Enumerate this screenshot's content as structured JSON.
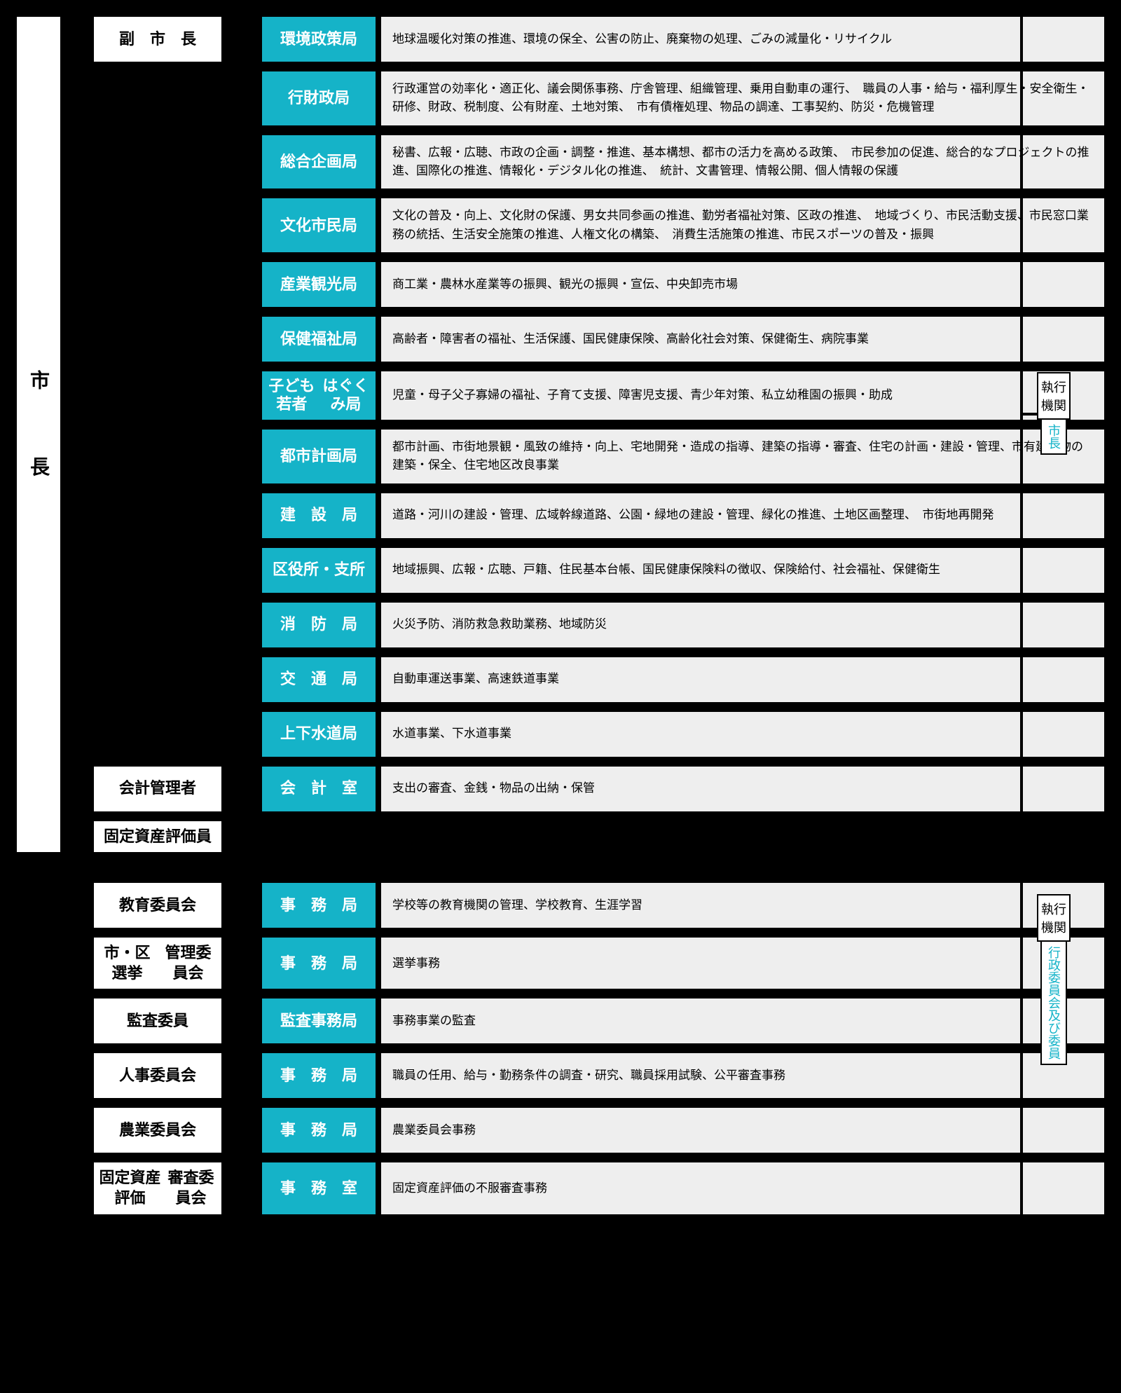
{
  "colors": {
    "bureau_bg": "#15b3c8",
    "desc_bg": "#eeeeee",
    "line": "#000000",
    "side_sub_color": "#15b3c8"
  },
  "root": "市　長",
  "mid": {
    "vice": "副　市　長",
    "acct": "会計管理者",
    "asset": "固定資産評価員",
    "edu": "教育委員会",
    "elect": "市・区選挙\n管理委員会",
    "audit": "監査委員",
    "person": "人事委員会",
    "agri": "農業委員会",
    "assetrev": "固定資産評価\n審査委員会"
  },
  "bureaus": [
    {
      "name": "環境政策局",
      "desc": "地球温暖化対策の推進、環境の保全、公害の防止、廃棄物の処理、ごみの減量化・リサイクル"
    },
    {
      "name": "行財政局",
      "desc": "行政運営の効率化・適正化、議会関係事務、庁舎管理、組織管理、乗用自動車の運行、　職員の人事・給与・福利厚生・安全衛生・研修、財政、税制度、公有財産、土地対策、　市有債権処理、物品の調達、工事契約、防災・危機管理"
    },
    {
      "name": "総合企画局",
      "desc": "秘書、広報・広聴、市政の企画・調整・推進、基本構想、都市の活力を高める政策、　市民参加の促進、総合的なプロジェクトの推進、国際化の推進、情報化・デジタル化の推進、　統計、文書管理、情報公開、個人情報の保護"
    },
    {
      "name": "文化市民局",
      "desc": "文化の普及・向上、文化財の保護、男女共同参画の推進、勤労者福祉対策、区政の推進、　地域づくり、市民活動支援、市民窓口業務の統括、生活安全施策の推進、人権文化の構築、　消費生活施策の推進、市民スポーツの普及・振興"
    },
    {
      "name": "産業観光局",
      "desc": "商工業・農林水産業等の振興、観光の振興・宣伝、中央卸売市場"
    },
    {
      "name": "保健福祉局",
      "desc": "高齢者・障害者の福祉、生活保護、国民健康保険、高齢化社会対策、保健衛生、病院事業"
    },
    {
      "name": "子ども若者\nはぐくみ局",
      "desc": "児童・母子父子寡婦の福祉、子育て支援、障害児支援、青少年対策、私立幼稚園の振興・助成"
    },
    {
      "name": "都市計画局",
      "desc": "都市計画、市街地景観・風致の維持・向上、宅地開発・造成の指導、建築の指導・審査、住宅の計画・建設・管理、市有建築物の建築・保全、住宅地区改良事業"
    },
    {
      "name": "建　設　局",
      "desc": "道路・河川の建設・管理、広域幹線道路、公園・緑地の建設・管理、緑化の推進、土地区画整理、　市街地再開発"
    },
    {
      "name": "区役所・支所",
      "desc": "地域振興、広報・広聴、戸籍、住民基本台帳、国民健康保険料の徴収、保険給付、社会福祉、保健衛生"
    },
    {
      "name": "消　防　局",
      "desc": "火災予防、消防救急救助業務、地域防災"
    },
    {
      "name": "交　通　局",
      "desc": "自動車運送事業、高速鉄道事業"
    },
    {
      "name": "上下水道局",
      "desc": "水道事業、下水道事業"
    }
  ],
  "acct_bureau": {
    "name": "会　計　室",
    "desc": "支出の審査、金銭・物品の出納・保管"
  },
  "committees": [
    {
      "mid": "edu",
      "name": "事　務　局",
      "desc": "学校等の教育機関の管理、学校教育、生涯学習"
    },
    {
      "mid": "elect",
      "name": "事　務　局",
      "desc": "選挙事務"
    },
    {
      "mid": "audit",
      "name": "監査事務局",
      "desc": "事務事業の監査"
    },
    {
      "mid": "person",
      "name": "事　務　局",
      "desc": "職員の任用、給与・勤務条件の調査・研究、職員採用試験、公平審査事務"
    },
    {
      "mid": "agri",
      "name": "事　務　局",
      "desc": "農業委員会事務"
    },
    {
      "mid": "assetrev",
      "name": "事　務　室",
      "desc": "固定資産評価の不服審査事務"
    }
  ],
  "side": {
    "upper_label": "執行\n機関",
    "upper_sub": "市長",
    "lower_label": "執行\n機関",
    "lower_sub": "行政委員会及び委員"
  }
}
